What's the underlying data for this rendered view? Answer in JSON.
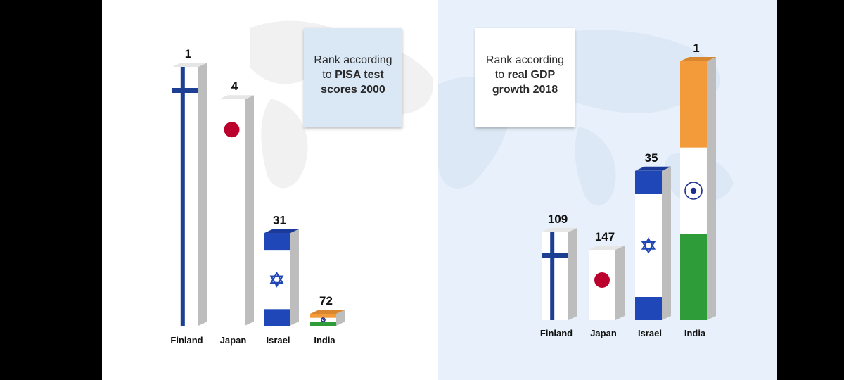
{
  "chart_data": [
    {
      "type": "bar",
      "title_line1": "Rank according",
      "title_line2_prefix": "to ",
      "title_line2_bold": "PISA test",
      "title_line3": "scores 2000",
      "categories": [
        "Finland",
        "Japan",
        "Israel",
        "India"
      ],
      "values": [
        1,
        4,
        31,
        72
      ],
      "value_labels": [
        "1",
        "4",
        "31",
        "72"
      ],
      "flags": [
        "finland",
        "japan",
        "israel",
        "india"
      ]
    },
    {
      "type": "bar",
      "title_line1": "Rank according",
      "title_line2_prefix": "to ",
      "title_line2_bold": "real GDP",
      "title_line3": "growth 2018",
      "categories": [
        "Finland",
        "Japan",
        "Israel",
        "India"
      ],
      "values": [
        109,
        147,
        35,
        1
      ],
      "value_labels": [
        "109",
        "147",
        "35",
        "1"
      ],
      "flags": [
        "finland",
        "japan",
        "israel",
        "india"
      ]
    }
  ],
  "colors": {
    "finland_blue": "#1c3f94",
    "japan_red": "#bc002d",
    "israel_blue": "#1f47b8",
    "india_saffron": "#f39a3b",
    "india_green": "#2f9c3a",
    "side_gray": "#bdbdbd",
    "right_bg": "#e8f1fb"
  }
}
